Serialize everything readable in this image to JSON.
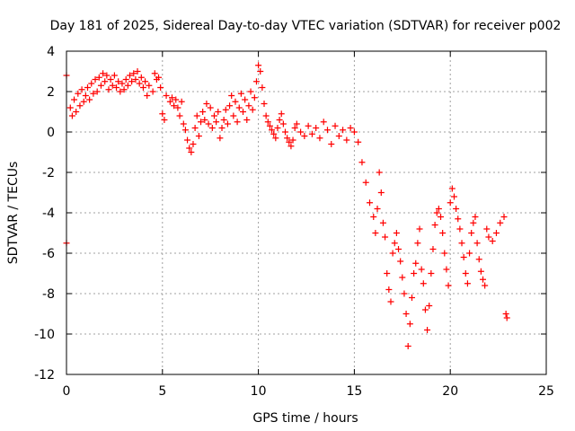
{
  "chart_data": {
    "type": "scatter",
    "title": "Day 181 of 2025, Sidereal Day-to-day VTEC variation (SDTVAR) for receiver p002",
    "xlabel": "GPS time / hours",
    "ylabel": "SDTVAR / TECUs",
    "xlim": [
      0,
      25
    ],
    "ylim": [
      -12,
      4
    ],
    "xticks": [
      0,
      5,
      10,
      15,
      20,
      25
    ],
    "yticks": [
      -12,
      -10,
      -8,
      -6,
      -4,
      -2,
      0,
      2,
      4
    ],
    "xtick_labels": [
      "0",
      "5",
      "10",
      "15",
      "20",
      "25"
    ],
    "ytick_labels": [
      "-12",
      "-10",
      "-8",
      "-6",
      "-4",
      "-2",
      "0",
      "2",
      "4"
    ],
    "grid": true,
    "marker": "plus",
    "color": "#ff0000",
    "series": [
      {
        "name": "",
        "x": [
          0.0,
          0.0,
          0.2,
          0.3,
          0.4,
          0.5,
          0.6,
          0.7,
          0.8,
          0.9,
          1.0,
          1.1,
          1.2,
          1.3,
          1.4,
          1.5,
          1.6,
          1.7,
          1.8,
          1.9,
          2.0,
          2.1,
          2.2,
          2.3,
          2.4,
          2.5,
          2.6,
          2.7,
          2.8,
          2.9,
          3.0,
          3.1,
          3.2,
          3.3,
          3.4,
          3.5,
          3.6,
          3.7,
          3.8,
          3.9,
          4.0,
          4.1,
          4.2,
          4.3,
          4.5,
          4.6,
          4.7,
          4.8,
          4.9,
          5.0,
          5.1,
          5.2,
          5.4,
          5.5,
          5.6,
          5.7,
          5.8,
          5.9,
          6.0,
          6.1,
          6.2,
          6.3,
          6.4,
          6.5,
          6.6,
          6.7,
          6.8,
          6.9,
          7.0,
          7.1,
          7.2,
          7.3,
          7.4,
          7.5,
          7.6,
          7.7,
          7.8,
          7.9,
          8.0,
          8.1,
          8.2,
          8.3,
          8.4,
          8.5,
          8.6,
          8.7,
          8.8,
          8.9,
          9.0,
          9.1,
          9.2,
          9.3,
          9.4,
          9.5,
          9.6,
          9.7,
          9.8,
          9.9,
          10.0,
          10.1,
          10.2,
          10.3,
          10.4,
          10.5,
          10.6,
          10.7,
          10.8,
          10.9,
          11.0,
          11.1,
          11.2,
          11.3,
          11.4,
          11.5,
          11.6,
          11.7,
          11.8,
          11.9,
          12.0,
          12.2,
          12.4,
          12.6,
          12.8,
          13.0,
          13.2,
          13.4,
          13.6,
          13.8,
          14.0,
          14.2,
          14.4,
          14.6,
          14.8,
          15.0,
          15.2,
          15.4,
          15.6,
          15.8,
          16.0,
          16.1,
          16.2,
          16.3,
          16.4,
          16.5,
          16.6,
          16.7,
          16.8,
          16.9,
          17.0,
          17.1,
          17.2,
          17.3,
          17.4,
          17.5,
          17.6,
          17.7,
          17.8,
          17.9,
          18.0,
          18.1,
          18.2,
          18.3,
          18.4,
          18.5,
          18.6,
          18.7,
          18.8,
          18.9,
          19.0,
          19.1,
          19.2,
          19.3,
          19.4,
          19.5,
          19.6,
          19.7,
          19.8,
          19.9,
          20.0,
          20.1,
          20.2,
          20.3,
          20.4,
          20.5,
          20.6,
          20.7,
          20.8,
          20.9,
          21.0,
          21.1,
          21.2,
          21.3,
          21.4,
          21.5,
          21.6,
          21.7,
          21.8,
          21.9,
          22.0,
          22.2,
          22.4,
          22.6,
          22.8,
          22.9,
          22.95
        ],
        "y": [
          2.8,
          -5.5,
          1.2,
          0.8,
          1.6,
          1.0,
          1.9,
          1.3,
          2.1,
          1.5,
          1.8,
          2.2,
          1.6,
          2.4,
          1.9,
          2.6,
          2.0,
          2.7,
          2.3,
          2.9,
          2.5,
          2.8,
          2.1,
          2.6,
          2.3,
          2.8,
          2.2,
          2.5,
          2.0,
          2.4,
          2.1,
          2.6,
          2.3,
          2.8,
          2.5,
          2.9,
          2.6,
          3.0,
          2.4,
          2.7,
          2.2,
          2.5,
          1.8,
          2.3,
          2.0,
          2.9,
          2.6,
          2.7,
          2.2,
          0.9,
          0.6,
          1.8,
          1.5,
          1.7,
          1.3,
          1.6,
          1.2,
          0.8,
          1.5,
          0.4,
          0.1,
          -0.4,
          -0.8,
          -1.0,
          -0.6,
          0.2,
          0.8,
          -0.2,
          0.5,
          1.0,
          0.6,
          1.4,
          0.4,
          1.2,
          0.2,
          0.8,
          0.5,
          1.0,
          -0.3,
          0.2,
          0.6,
          1.1,
          0.4,
          1.3,
          1.8,
          0.8,
          1.5,
          0.5,
          1.2,
          1.9,
          1.0,
          1.6,
          0.6,
          1.3,
          2.0,
          1.1,
          1.7,
          2.5,
          3.3,
          3.0,
          2.2,
          1.4,
          0.8,
          0.5,
          0.3,
          0.1,
          -0.1,
          -0.3,
          0.2,
          0.6,
          0.9,
          0.4,
          0.0,
          -0.3,
          -0.5,
          -0.7,
          -0.4,
          0.2,
          0.4,
          0.0,
          -0.2,
          0.3,
          -0.1,
          0.2,
          -0.3,
          0.5,
          0.1,
          -0.6,
          0.3,
          -0.2,
          0.1,
          -0.4,
          0.2,
          0.0,
          -0.5,
          -1.5,
          -2.5,
          -3.5,
          -4.2,
          -5.0,
          -3.8,
          -2.0,
          -3.0,
          -4.5,
          -5.2,
          -7.0,
          -7.8,
          -8.4,
          -6.0,
          -5.5,
          -5.0,
          -5.8,
          -6.4,
          -7.2,
          -8.0,
          -9.0,
          -10.6,
          -9.5,
          -8.2,
          -7.0,
          -6.5,
          -5.5,
          -4.8,
          -6.8,
          -7.5,
          -8.8,
          -9.8,
          -8.6,
          -7.0,
          -5.8,
          -4.6,
          -4.0,
          -3.8,
          -4.2,
          -5.0,
          -6.0,
          -6.8,
          -7.6,
          -3.5,
          -2.8,
          -3.2,
          -3.8,
          -4.3,
          -4.8,
          -5.5,
          -6.2,
          -7.0,
          -7.5,
          -6.0,
          -5.0,
          -4.5,
          -4.2,
          -5.5,
          -6.3,
          -6.9,
          -7.3,
          -7.6,
          -4.8,
          -5.2,
          -5.4,
          -5.0,
          -4.5,
          -4.2,
          -9.0,
          -9.2
        ]
      }
    ]
  }
}
